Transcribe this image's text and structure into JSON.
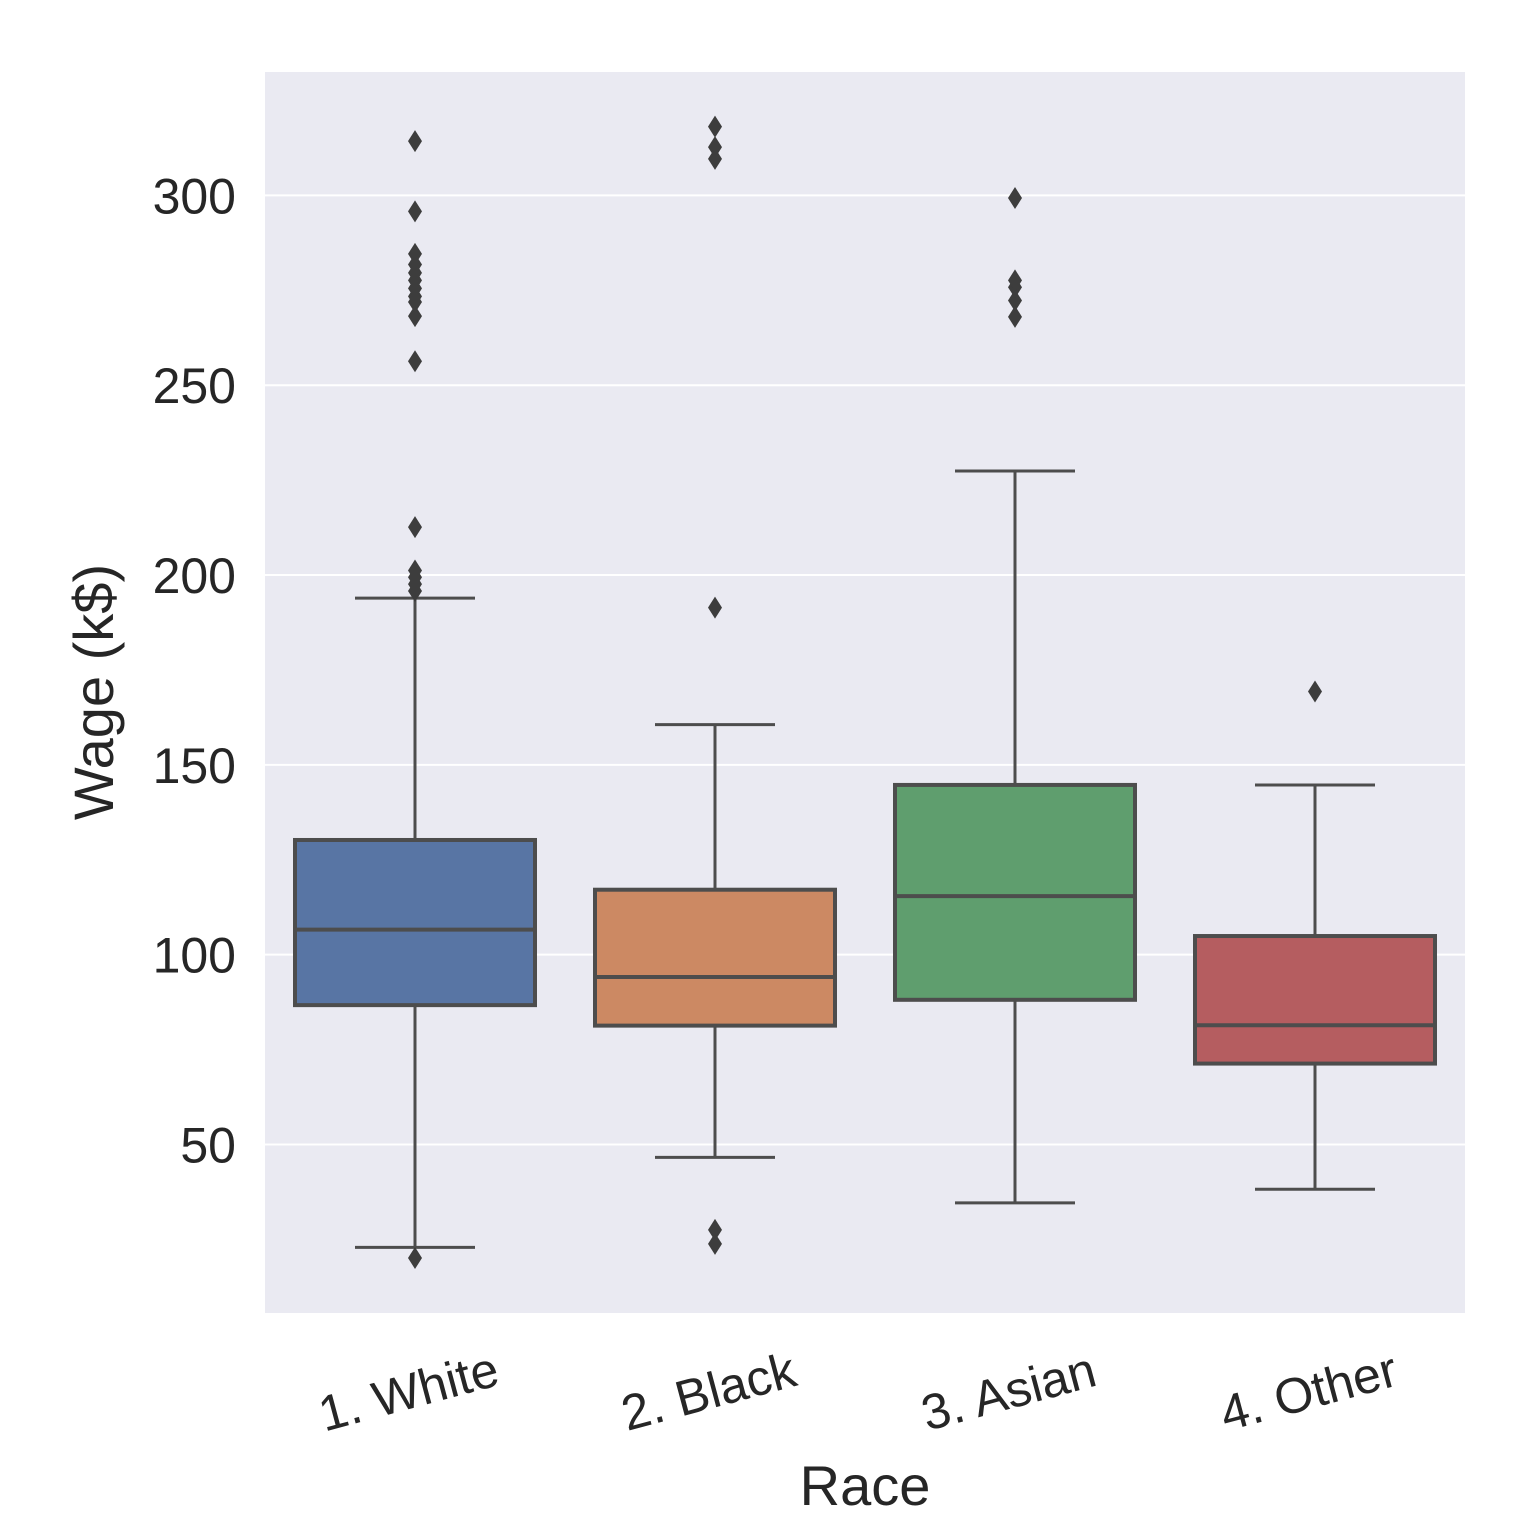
{
  "chart_data": {
    "type": "box",
    "title": "",
    "xlabel": "Race",
    "ylabel": "Wage (k$)",
    "categories": [
      "1. White",
      "2. Black",
      "3. Asian",
      "4. Other"
    ],
    "ylim": [
      5.6,
      332.5
    ],
    "yticks": [
      50,
      100,
      150,
      200,
      250,
      300
    ],
    "grid": true,
    "legend": "none",
    "boxes": [
      {
        "name": "1. White",
        "color": "#5875a4",
        "whisker_low": 22.9,
        "q1": 86.7,
        "median": 106.6,
        "q3": 130.2,
        "whisker_high": 193.9,
        "outliers": [
          20.1,
          195.8,
          197.6,
          199.4,
          201.2,
          212.6,
          256.3,
          268.2,
          271.9,
          273.4,
          275.5,
          277.6,
          279.6,
          281.8,
          284.6,
          295.8,
          314.3
        ]
      },
      {
        "name": "2. Black",
        "color": "#cc8963",
        "whisker_low": 46.6,
        "q1": 81.3,
        "median": 94.1,
        "q3": 117.1,
        "whisker_high": 160.6,
        "outliers": [
          23.8,
          27.5,
          191.4,
          309.6,
          312.7,
          318.1
        ]
      },
      {
        "name": "3. Asian",
        "color": "#5f9e6e",
        "whisker_low": 34.6,
        "q1": 88.1,
        "median": 115.4,
        "q3": 144.7,
        "whisker_high": 227.4,
        "outliers": [
          268.0,
          272.3,
          275.8,
          277.6,
          299.3
        ]
      },
      {
        "name": "4. Other",
        "color": "#b55d60",
        "whisker_low": 38.2,
        "q1": 71.3,
        "median": 81.4,
        "q3": 104.9,
        "whisker_high": 144.7,
        "outliers": [
          169.3
        ]
      }
    ]
  }
}
